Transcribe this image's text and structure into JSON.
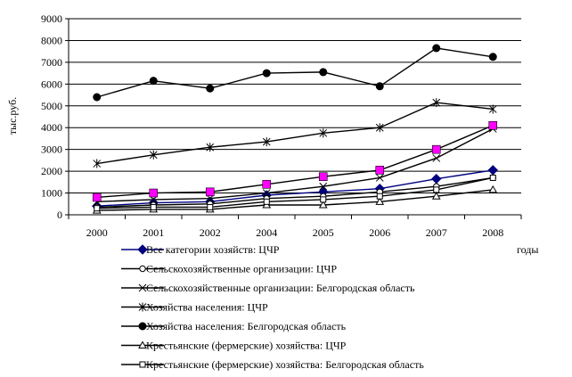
{
  "chart_data": {
    "type": "line",
    "ylabel": "тыс.руб.",
    "xlabel": "годы",
    "ylim": [
      0,
      9000
    ],
    "yticks": [
      0,
      1000,
      2000,
      3000,
      4000,
      5000,
      6000,
      7000,
      8000,
      9000
    ],
    "x": [
      "2000",
      "2001",
      "2002",
      "2004",
      "2005",
      "2006",
      "2007",
      "2008"
    ],
    "grid": "horizontal",
    "legend_position": "bottom",
    "series": [
      {
        "name": "Все категории хозяйств: ЦЧР",
        "values": [
          400,
          550,
          600,
          900,
          1050,
          1200,
          1650,
          2050
        ],
        "marker": "diamond",
        "color": "#000080",
        "marker_fill": "#000080"
      },
      {
        "name": "Сельскохозяйственные организации: ЦЧР",
        "values": [
          350,
          450,
          500,
          750,
          850,
          1050,
          1300,
          1700
        ],
        "marker": "circle-open",
        "color": "#000000",
        "marker_fill": "#ffffff"
      },
      {
        "name": "Сельскохозяйственные организации: Белгородская область",
        "values": [
          600,
          700,
          750,
          1000,
          1300,
          1700,
          2600,
          3950
        ],
        "marker": "x",
        "color": "#000000",
        "marker_fill": "none"
      },
      {
        "name": "Хозяйства населения: ЦЧР",
        "values": [
          2350,
          2750,
          3100,
          3350,
          3750,
          4000,
          5150,
          4850
        ],
        "marker": "star",
        "color": "#000000",
        "marker_fill": "none"
      },
      {
        "name": "Хозяйства населения: Белгородская область",
        "values": [
          5400,
          6150,
          5800,
          6500,
          6550,
          5900,
          7650,
          7250
        ],
        "marker": "circle-filled",
        "color": "#000000",
        "marker_fill": "#000000"
      },
      {
        "name": "Крестьянские (фермерские) хозяйства: ЦЧР",
        "values": [
          200,
          250,
          250,
          450,
          450,
          600,
          850,
          1150
        ],
        "marker": "triangle",
        "color": "#000000",
        "marker_fill": "#ffffff"
      },
      {
        "name": "Крестьянские (фермерские) хозяйства: Белгородская область",
        "values": [
          300,
          350,
          350,
          600,
          700,
          850,
          1150,
          1700
        ],
        "marker": "square-open",
        "color": "#000000",
        "marker_fill": "#ffffff"
      },
      {
        "name": "",
        "values": [
          800,
          1000,
          1050,
          1400,
          1750,
          2050,
          3000,
          4100
        ],
        "marker": "square-filled",
        "color": "#000000",
        "marker_fill": "#ff00ff"
      }
    ]
  }
}
